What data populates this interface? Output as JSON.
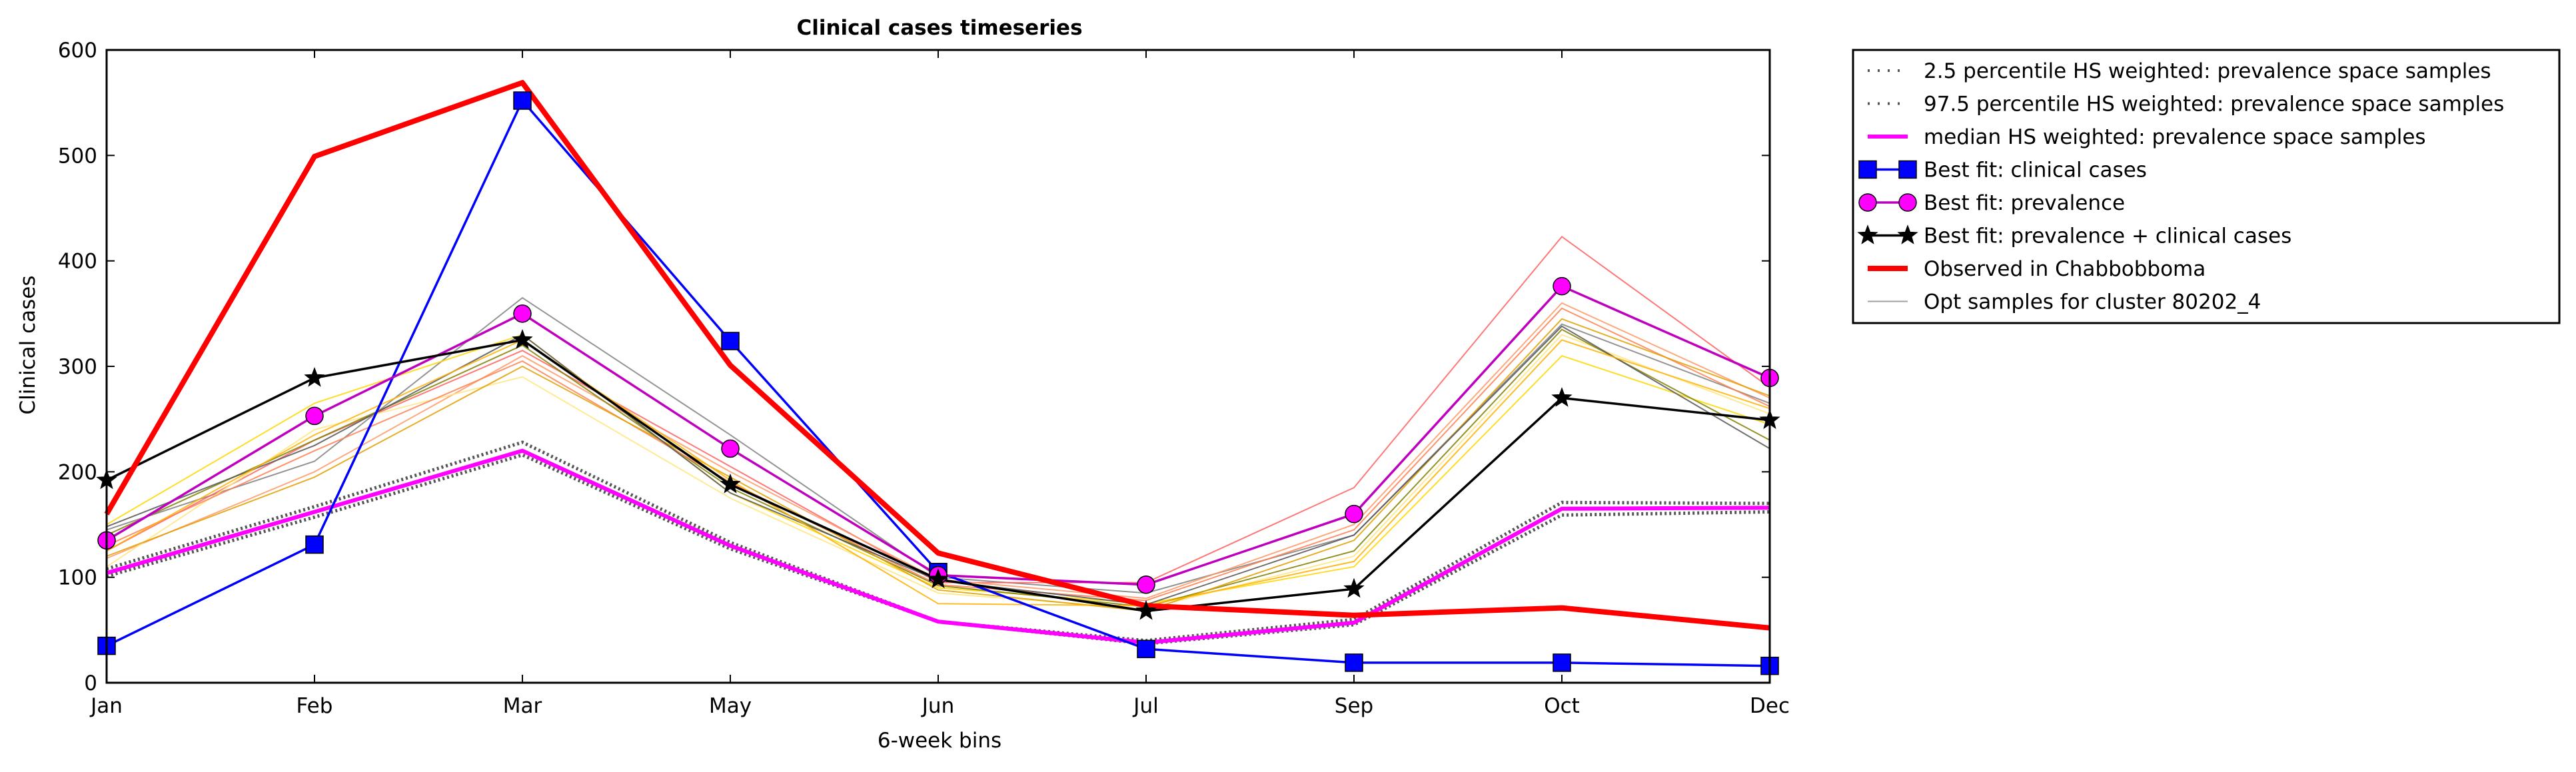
{
  "chart_data": {
    "type": "line",
    "title": "Clinical cases timeseries",
    "xlabel": "6-week bins",
    "ylabel": "Clinical cases",
    "categories": [
      "Jan",
      "Feb",
      "Mar",
      "May",
      "Jun",
      "Jul",
      "Sep",
      "Oct",
      "Dec"
    ],
    "ylim": [
      0,
      600
    ],
    "yticks": [
      0,
      100,
      200,
      300,
      400,
      500,
      600
    ],
    "grid": false,
    "legend_position": "outside upper right",
    "series": [
      {
        "name": "2.5 percentile HS weighted: prevalence space samples",
        "style": "dotted",
        "color": "#808080",
        "values": [
          101,
          157,
          216,
          127,
          58,
          37,
          55,
          159,
          162
        ]
      },
      {
        "name": "97.5 percentile HS weighted: prevalence space samples",
        "style": "dotted",
        "color": "#808080",
        "values": [
          108,
          167,
          228,
          133,
          58,
          40,
          60,
          171,
          170
        ]
      },
      {
        "name": "median HS weighted: prevalence space samples",
        "style": "solid",
        "color": "#ff00ff",
        "values": [
          104,
          162,
          220,
          130,
          58,
          38,
          57,
          165,
          166
        ]
      },
      {
        "name": "Best fit: clinical cases",
        "style": "solid",
        "color": "#0000ff",
        "marker": "square",
        "values": [
          35,
          131,
          552,
          324,
          105,
          32,
          19,
          19,
          16
        ]
      },
      {
        "name": "Best fit: prevalence",
        "style": "solid",
        "color": "#bf00bf",
        "marker": "circle",
        "values": [
          135,
          253,
          350,
          222,
          102,
          93,
          160,
          376,
          289
        ]
      },
      {
        "name": "Best fit: prevalence + clinical cases",
        "style": "solid",
        "color": "#000000",
        "marker": "star",
        "values": [
          192,
          289,
          325,
          188,
          98,
          68,
          89,
          270,
          249
        ]
      },
      {
        "name": "Observed in Chabbobboma",
        "style": "solid",
        "color": "#ff0000",
        "values": [
          160,
          499,
          569,
          301,
          123,
          73,
          64,
          71,
          52
        ]
      },
      {
        "name": "Opt samples for cluster 80202_4",
        "style": "thin",
        "color": "#a0a0a0",
        "samples": [
          {
            "color": "#808080",
            "values": [
              145,
              210,
              365,
              235,
              100,
              85,
              140,
              340,
              265
            ]
          },
          {
            "color": "#ff6060",
            "values": [
              125,
              230,
              315,
              205,
              95,
              95,
              185,
              423,
              280
            ]
          },
          {
            "color": "#ff9966",
            "values": [
              118,
              200,
              310,
              200,
              98,
              80,
              150,
              360,
              270
            ]
          },
          {
            "color": "#ffd700",
            "values": [
              150,
              265,
              330,
              180,
              90,
              75,
              110,
              310,
              245
            ]
          },
          {
            "color": "#ffe680",
            "values": [
              110,
              240,
              290,
              175,
              85,
              70,
              120,
              330,
              255
            ]
          },
          {
            "color": "#808000",
            "values": [
              140,
              230,
              320,
              185,
              92,
              72,
              125,
              335,
              230
            ]
          },
          {
            "color": "#ff7f50",
            "values": [
              130,
              220,
              305,
              190,
              93,
              78,
              145,
              355,
              262
            ]
          },
          {
            "color": "#e0a000",
            "values": [
              120,
              195,
              300,
              195,
              88,
              68,
              135,
              345,
              272
            ]
          },
          {
            "color": "#555555",
            "values": [
              148,
              225,
              330,
              180,
              97,
              74,
              140,
              338,
              222
            ]
          },
          {
            "color": "#ffb000",
            "values": [
              125,
              235,
              325,
              192,
              75,
              73,
              115,
              325,
              260
            ]
          }
        ]
      }
    ]
  }
}
